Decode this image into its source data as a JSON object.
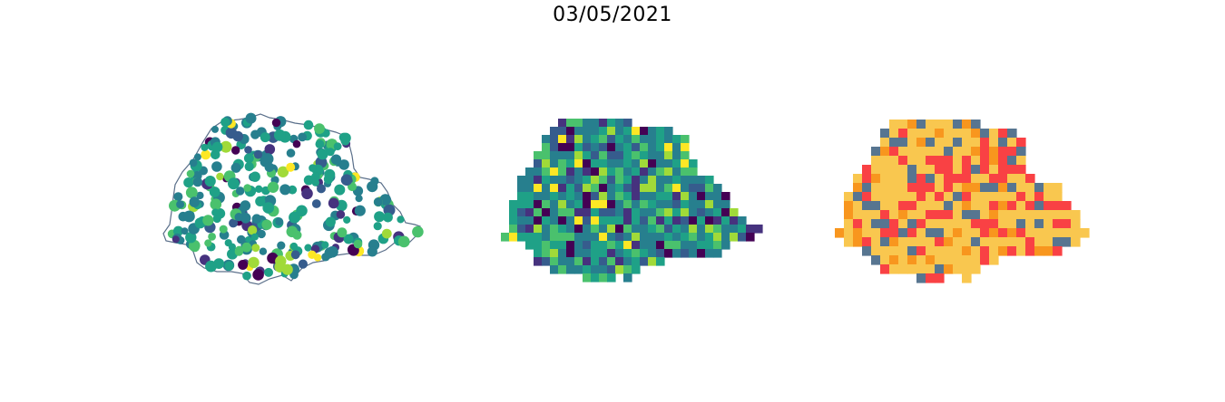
{
  "title": "03/05/2021",
  "panels": [
    {
      "id": "points",
      "kind": "bubble-map",
      "palette": "viridis"
    },
    {
      "id": "choropleth",
      "kind": "choropleth-map",
      "palette": "viridis"
    },
    {
      "id": "categories",
      "kind": "categorical-choropleth-map",
      "colors": [
        "#f9c74f",
        "#f94144",
        "#577590",
        "#f8961e"
      ]
    }
  ],
  "colors": {
    "outline": "#5a6f8a",
    "viridis": [
      "#440154",
      "#46327e",
      "#365c8d",
      "#277f8e",
      "#1fa187",
      "#4ac16d",
      "#a0da39",
      "#fde725"
    ]
  }
}
